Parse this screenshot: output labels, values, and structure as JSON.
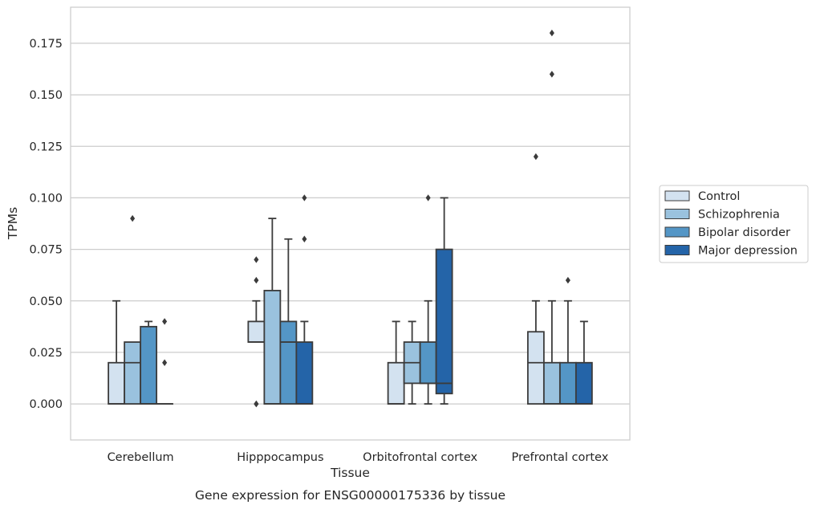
{
  "chart_data": {
    "type": "box",
    "title": "",
    "caption": "Gene expression for ENSG00000175336 by tissue",
    "xlabel": "Tissue",
    "ylabel": "TPMs",
    "ylim": [
      -0.0175,
      0.1925
    ],
    "y_ticks": [
      "0.000",
      "0.025",
      "0.050",
      "0.075",
      "0.100",
      "0.125",
      "0.150",
      "0.175"
    ],
    "grid": "horizontal",
    "legend_position": "right",
    "categories": [
      "Cerebellum",
      "Hipppocampus",
      "Orbitofrontal cortex",
      "Prefrontal cortex"
    ],
    "series": [
      {
        "name": "Control",
        "color": "#d3e2f0",
        "boxes": [
          {
            "whislo": 0,
            "q1": 0,
            "med": 0,
            "q3": 0.02,
            "whishi": 0.05,
            "fliers": []
          },
          {
            "whislo": 0.03,
            "q1": 0.03,
            "med": 0.03,
            "q3": 0.04,
            "whishi": 0.05,
            "fliers": [
              0.06,
              0.07,
              0.0,
              0.0
            ]
          },
          {
            "whislo": 0,
            "q1": 0,
            "med": 0,
            "q3": 0.02,
            "whishi": 0.04,
            "fliers": []
          },
          {
            "whislo": 0,
            "q1": 0,
            "med": 0.02,
            "q3": 0.035,
            "whishi": 0.05,
            "fliers": [
              0.12
            ]
          }
        ]
      },
      {
        "name": "Schizophrenia",
        "color": "#9ac2de",
        "boxes": [
          {
            "whislo": 0,
            "q1": 0,
            "med": 0.02,
            "q3": 0.03,
            "whishi": 0.03,
            "fliers": [
              0.09
            ]
          },
          {
            "whislo": 0,
            "q1": 0,
            "med": 0,
            "q3": 0.055,
            "whishi": 0.09,
            "fliers": []
          },
          {
            "whislo": 0,
            "q1": 0.01,
            "med": 0.02,
            "q3": 0.03,
            "whishi": 0.04,
            "fliers": []
          },
          {
            "whislo": 0,
            "q1": 0,
            "med": 0,
            "q3": 0.02,
            "whishi": 0.05,
            "fliers": [
              0.18,
              0.16
            ]
          }
        ]
      },
      {
        "name": "Bipolar disorder",
        "color": "#5496c6",
        "boxes": [
          {
            "whislo": 0,
            "q1": 0,
            "med": 0,
            "q3": 0.0375,
            "whishi": 0.04,
            "fliers": []
          },
          {
            "whislo": 0,
            "q1": 0,
            "med": 0.03,
            "q3": 0.04,
            "whishi": 0.08,
            "fliers": []
          },
          {
            "whislo": 0,
            "q1": 0.01,
            "med": 0.01,
            "q3": 0.03,
            "whishi": 0.05,
            "fliers": [
              0.1
            ]
          },
          {
            "whislo": 0,
            "q1": 0,
            "med": 0,
            "q3": 0.02,
            "whishi": 0.05,
            "fliers": [
              0.06
            ]
          }
        ]
      },
      {
        "name": "Major depression",
        "color": "#2464a8",
        "boxes": [
          {
            "whislo": 0,
            "q1": 0,
            "med": 0,
            "q3": 0,
            "whishi": 0,
            "fliers": [
              0.04,
              0.02
            ]
          },
          {
            "whislo": 0,
            "q1": 0,
            "med": 0,
            "q3": 0.03,
            "whishi": 0.04,
            "fliers": [
              0.1,
              0.08
            ]
          },
          {
            "whislo": 0,
            "q1": 0.005,
            "med": 0.01,
            "q3": 0.075,
            "whishi": 0.1,
            "fliers": []
          },
          {
            "whislo": 0,
            "q1": 0,
            "med": 0,
            "q3": 0.02,
            "whishi": 0.04,
            "fliers": []
          }
        ]
      }
    ]
  }
}
